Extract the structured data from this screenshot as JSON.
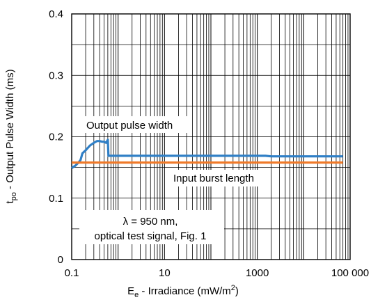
{
  "chart_data": {
    "type": "line",
    "x_scale": "log",
    "xlim": [
      0.1,
      100000
    ],
    "ylim": [
      0,
      0.4
    ],
    "grid": true,
    "x_ticks": [
      {
        "value": 0.1,
        "label": "0.1"
      },
      {
        "value": 10,
        "label": "10"
      },
      {
        "value": 1000,
        "label": "1000"
      },
      {
        "value": 100000,
        "label": "100 000"
      }
    ],
    "y_ticks": [
      {
        "value": 0,
        "label": "0"
      },
      {
        "value": 0.1,
        "label": "0.1"
      },
      {
        "value": 0.2,
        "label": "0.2"
      },
      {
        "value": 0.3,
        "label": "0.3"
      },
      {
        "value": 0.4,
        "label": "0.4"
      }
    ],
    "xlabel": {
      "main": "E",
      "sub": "e",
      "rest": " - Irradiance (mW/m",
      "sup": "2",
      "end": ")"
    },
    "ylabel": {
      "main": "t",
      "sub": "po",
      "rest": " - Output Pulse Width (ms)"
    },
    "series": [
      {
        "name": "Output pulse width",
        "color": "#2f7fc6",
        "x": [
          0.1,
          0.12,
          0.14,
          0.155,
          0.17,
          0.2,
          0.25,
          0.3,
          0.35,
          0.4,
          0.45,
          0.5,
          0.55,
          0.6,
          0.62,
          0.7,
          1,
          10,
          100,
          1000,
          1500,
          2000,
          3000,
          10000,
          30000,
          70000
        ],
        "y": [
          0.149,
          0.153,
          0.158,
          0.162,
          0.173,
          0.178,
          0.186,
          0.19,
          0.193,
          0.193,
          0.192,
          0.192,
          0.19,
          0.195,
          0.169,
          0.169,
          0.169,
          0.169,
          0.169,
          0.169,
          0.169,
          0.168,
          0.168,
          0.168,
          0.168,
          0.168
        ]
      },
      {
        "name": "Input burst length",
        "color": "#f07a2a",
        "x": [
          0.1,
          70000
        ],
        "y": [
          0.158,
          0.158
        ]
      }
    ],
    "annotations": {
      "output_label": "Output pulse width",
      "input_label": "Input burst length",
      "note_line1": "λ = 950 nm,",
      "note_line2": "optical test signal, Fig. 1"
    }
  }
}
